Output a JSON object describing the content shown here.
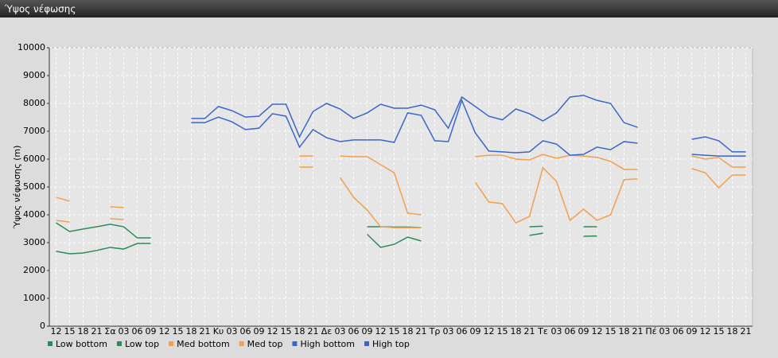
{
  "chart_data": {
    "type": "line",
    "title": "Ύψος νέφωσης",
    "ylabel": "Ύψος νέφωσης (m)",
    "categories": [
      "12",
      "15",
      "18",
      "21",
      "Σα",
      "03",
      "06",
      "09",
      "12",
      "15",
      "18",
      "21",
      "Κυ",
      "03",
      "06",
      "09",
      "12",
      "15",
      "18",
      "21",
      "Δε",
      "03",
      "06",
      "09",
      "12",
      "15",
      "18",
      "21",
      "Τρ",
      "03",
      "06",
      "09",
      "12",
      "15",
      "18",
      "21",
      "Τε",
      "03",
      "06",
      "09",
      "12",
      "15",
      "18",
      "21",
      "Πέ",
      "03",
      "06",
      "09",
      "12",
      "15",
      "18",
      "21"
    ],
    "ylim": [
      0,
      10000
    ],
    "yticks": [
      0,
      1000,
      2000,
      3000,
      4000,
      5000,
      6000,
      7000,
      8000,
      9000,
      10000
    ],
    "grid": true,
    "legend": "bottom",
    "series": [
      {
        "name": "Low bottom",
        "color": "#2e8b57",
        "values": [
          2690,
          2600,
          2630,
          2720,
          2830,
          2770,
          2970,
          2970,
          null,
          null,
          null,
          null,
          null,
          null,
          null,
          null,
          null,
          null,
          null,
          null,
          null,
          null,
          null,
          3300,
          2830,
          2940,
          3200,
          3060,
          null,
          null,
          null,
          null,
          null,
          null,
          null,
          3260,
          3340,
          null,
          null,
          3230,
          3240,
          null,
          null,
          null,
          null,
          null,
          null,
          null,
          null,
          null,
          null,
          null
        ]
      },
      {
        "name": "Low top",
        "color": "#2e8b57",
        "values": [
          3710,
          3400,
          3490,
          3570,
          3660,
          3570,
          3170,
          3170,
          null,
          null,
          null,
          null,
          null,
          null,
          null,
          null,
          null,
          null,
          null,
          null,
          null,
          null,
          null,
          3570,
          3570,
          3560,
          3560,
          3540,
          null,
          null,
          null,
          null,
          null,
          null,
          null,
          3570,
          3590,
          null,
          null,
          3570,
          3570,
          null,
          null,
          null,
          null,
          null,
          null,
          null,
          null,
          null,
          null,
          null
        ]
      },
      {
        "name": "Med bottom",
        "color": "#f0a050",
        "values": [
          3800,
          3740,
          null,
          null,
          3860,
          3830,
          null,
          null,
          null,
          null,
          null,
          null,
          null,
          null,
          null,
          null,
          null,
          null,
          5710,
          5710,
          null,
          5340,
          4630,
          4170,
          3570,
          3540,
          3540,
          3540,
          null,
          null,
          null,
          5170,
          4460,
          4400,
          3710,
          3940,
          5690,
          5200,
          3800,
          4200,
          3800,
          4000,
          5260,
          5290,
          null,
          null,
          null,
          5660,
          5510,
          4970,
          5430,
          5430
        ]
      },
      {
        "name": "Med top",
        "color": "#f0a050",
        "values": [
          4630,
          4490,
          null,
          null,
          4290,
          4260,
          null,
          null,
          null,
          null,
          null,
          null,
          null,
          null,
          null,
          null,
          null,
          null,
          6110,
          6110,
          null,
          6110,
          6090,
          6090,
          5800,
          5510,
          4060,
          4000,
          null,
          null,
          null,
          6090,
          6140,
          6140,
          6000,
          5970,
          6170,
          6030,
          6140,
          6110,
          6060,
          5920,
          5630,
          5630,
          null,
          null,
          null,
          6110,
          6000,
          6060,
          5710,
          5710
        ]
      },
      {
        "name": "High bottom",
        "color": "#3b66c8",
        "values": [
          null,
          null,
          null,
          null,
          null,
          null,
          null,
          null,
          null,
          null,
          7310,
          7310,
          7510,
          7340,
          7060,
          7110,
          7630,
          7540,
          6430,
          7060,
          6770,
          6630,
          6690,
          6690,
          6690,
          6600,
          7660,
          7570,
          6660,
          6630,
          8110,
          6940,
          6290,
          6260,
          6230,
          6260,
          6660,
          6540,
          6140,
          6170,
          6430,
          6340,
          6630,
          6570,
          null,
          null,
          null,
          6170,
          6140,
          6110,
          6110,
          6110
        ]
      },
      {
        "name": "High top",
        "color": "#3b66c8",
        "values": [
          null,
          null,
          null,
          null,
          null,
          null,
          null,
          null,
          null,
          null,
          7460,
          7460,
          7890,
          7740,
          7510,
          7540,
          7970,
          7970,
          6800,
          7710,
          8000,
          7800,
          7460,
          7660,
          7970,
          7830,
          7830,
          7940,
          7770,
          7110,
          8230,
          7890,
          7540,
          7410,
          7800,
          7630,
          7370,
          7660,
          8230,
          8290,
          8110,
          8000,
          7310,
          7140,
          null,
          null,
          null,
          6710,
          6800,
          6660,
          6260,
          6260
        ]
      }
    ]
  }
}
